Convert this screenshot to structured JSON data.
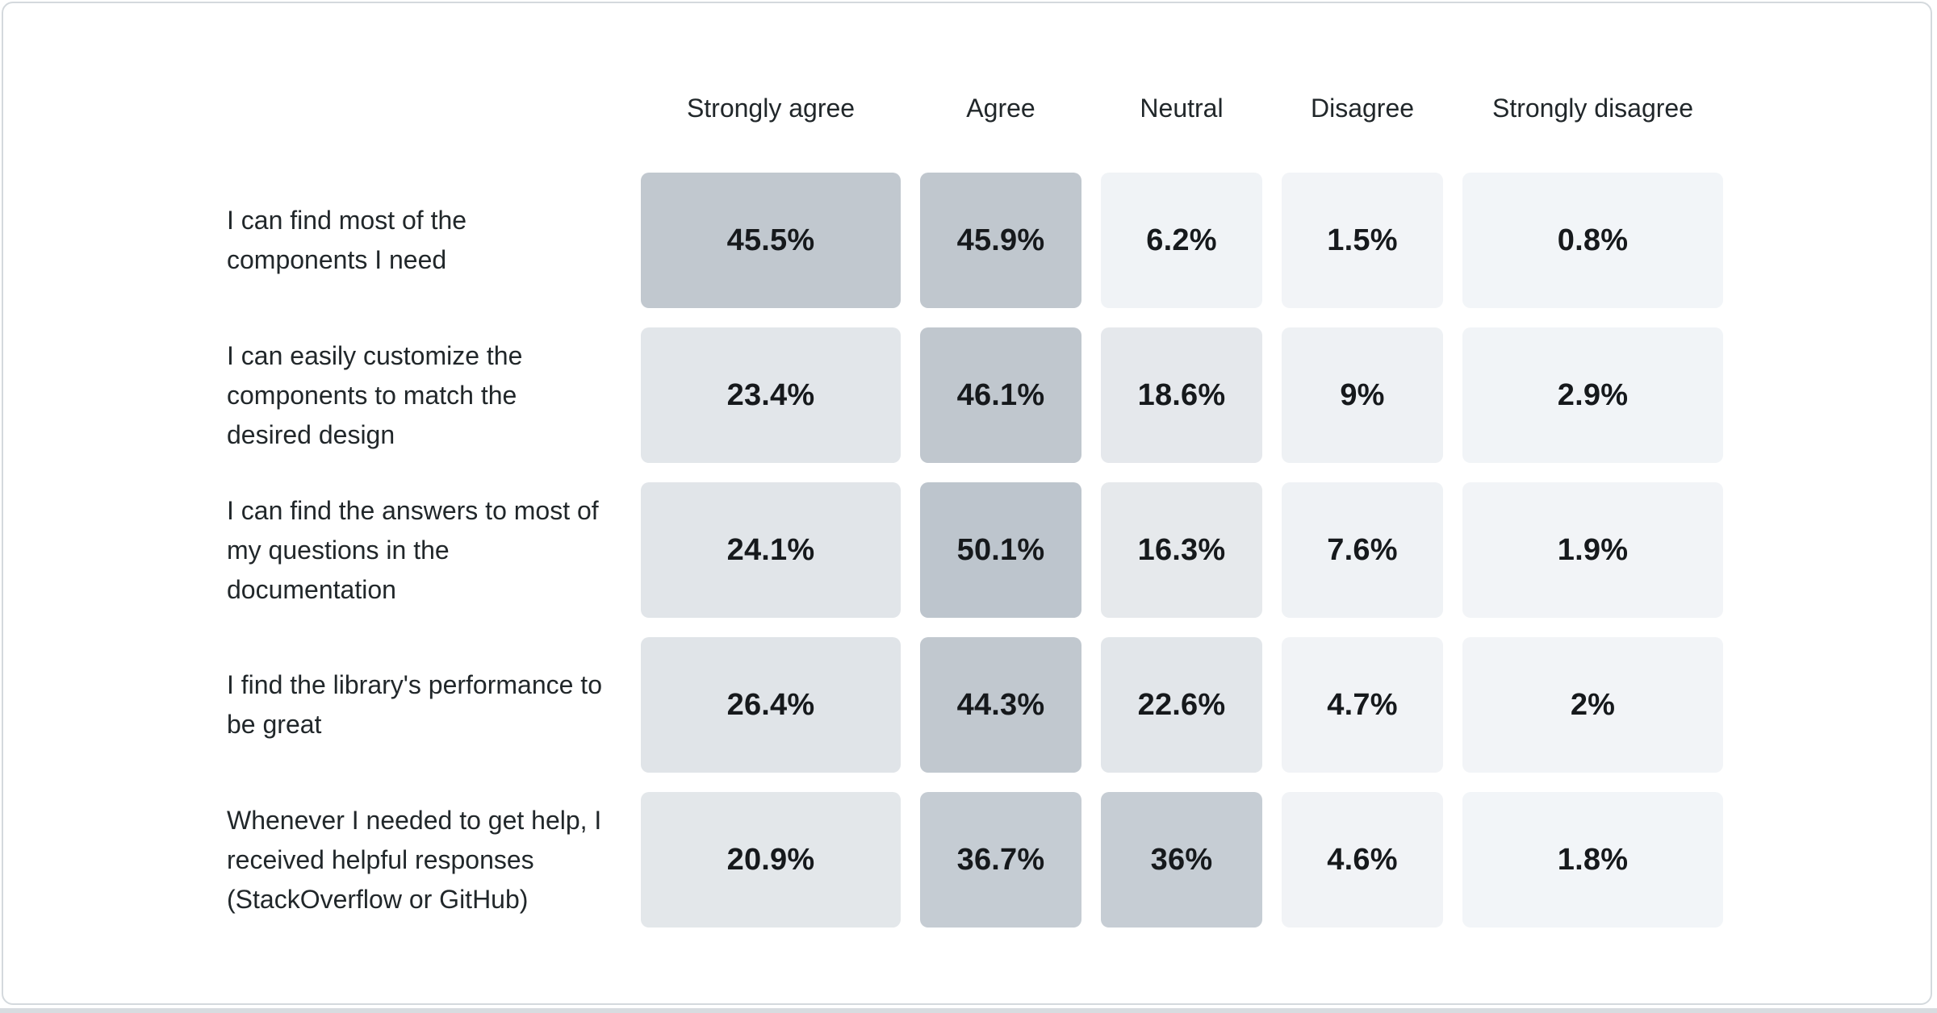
{
  "card": {
    "background": "#ffffff",
    "border_color": "#d4d9dd",
    "bottom_strip_color": "#d8dce0"
  },
  "chart_data": {
    "type": "heatmap",
    "title": "",
    "unit": "%",
    "legend_position": "none",
    "grid": false,
    "color_scale": {
      "low_value_color": "#f2f5f8",
      "high_value_color": "#bdc5cd"
    },
    "columns": [
      "Strongly agree",
      "Agree",
      "Neutral",
      "Disagree",
      "Strongly disagree"
    ],
    "rows": [
      {
        "label": "I can find most of the components I need",
        "values": [
          45.5,
          45.9,
          6.2,
          1.5,
          0.8
        ],
        "display": [
          "45.5%",
          "45.9%",
          "6.2%",
          "1.5%",
          "0.8%"
        ],
        "colors": [
          "#c1c8cf",
          "#c0c7ce",
          "#f0f3f6",
          "#f2f4f7",
          "#f2f5f8"
        ]
      },
      {
        "label": "I can easily customize the components to match the desired design",
        "values": [
          23.4,
          46.1,
          18.6,
          9,
          2.9
        ],
        "display": [
          "23.4%",
          "46.1%",
          "18.6%",
          "9%",
          "2.9%"
        ],
        "colors": [
          "#e2e6ea",
          "#c0c7ce",
          "#e5e8ec",
          "#eef1f4",
          "#f1f4f7"
        ]
      },
      {
        "label": "I can find the answers to most of my questions in the documentation",
        "values": [
          24.1,
          50.1,
          16.3,
          7.6,
          1.9
        ],
        "display": [
          "24.1%",
          "50.1%",
          "16.3%",
          "7.6%",
          "1.9%"
        ],
        "colors": [
          "#e1e5e9",
          "#bdc5cd",
          "#e6e9ec",
          "#eff2f5",
          "#f2f4f7"
        ]
      },
      {
        "label": "I find the library's performance to be great",
        "values": [
          26.4,
          44.3,
          22.6,
          4.7,
          2
        ],
        "display": [
          "26.4%",
          "44.3%",
          "22.6%",
          "4.7%",
          "2%"
        ],
        "colors": [
          "#e0e4e8",
          "#c1c8cf",
          "#e2e6ea",
          "#f1f3f6",
          "#f2f4f7"
        ]
      },
      {
        "label": "Whenever I needed to get help, I received helpful responses (StackOverflow or GitHub)",
        "values": [
          20.9,
          36.7,
          36,
          4.6,
          1.8
        ],
        "display": [
          "20.9%",
          "36.7%",
          "36%",
          "4.6%",
          "1.8%"
        ],
        "colors": [
          "#e3e7ea",
          "#c5ccd3",
          "#c6cdd4",
          "#f1f3f6",
          "#f2f5f8"
        ]
      }
    ]
  }
}
